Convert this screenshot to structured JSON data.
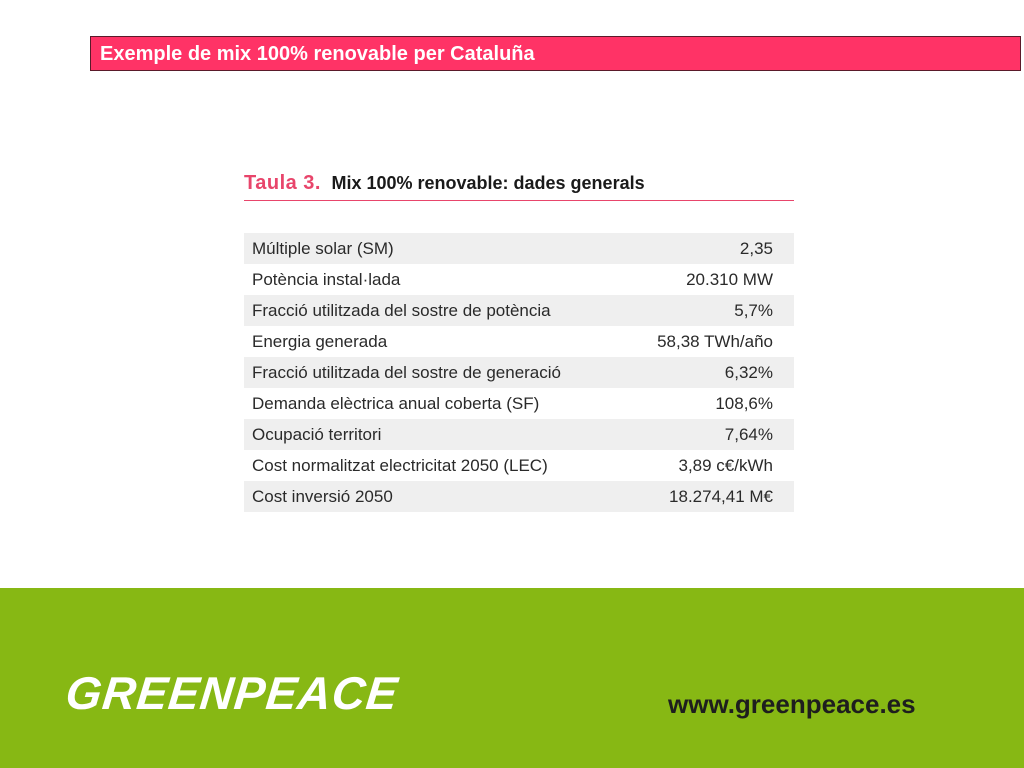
{
  "title": "Exemple de mix 100% renovable per Cataluña",
  "table": {
    "number": "Taula 3.",
    "caption": "Mix 100% renovable: dades generals",
    "rows": [
      {
        "label": "Múltiple solar (SM)",
        "value": "2,35"
      },
      {
        "label": "Potència instal·lada",
        "value": "20.310 MW"
      },
      {
        "label": "Fracció utilitzada del sostre de potència",
        "value": "5,7%"
      },
      {
        "label": "Energia generada",
        "value": "58,38 TWh/año"
      },
      {
        "label": "Fracció utilitzada del sostre de generació",
        "value": "6,32%"
      },
      {
        "label": "Demanda elèctrica anual coberta (SF)",
        "value": "108,6%"
      },
      {
        "label": "Ocupació territori",
        "value": "7,64%"
      },
      {
        "label": "Cost normalitzat electricitat 2050 (LEC)",
        "value": "3,89 c€/kWh"
      },
      {
        "label": "Cost inversió 2050",
        "value": "18.274,41 M€"
      }
    ]
  },
  "footer": {
    "logo": "GREENPEACE",
    "website": "www.greenpeace.es"
  },
  "colors": {
    "title_bar": "#ff3366",
    "table_accent": "#e8456b",
    "row_shade": "#efefef",
    "banner": "#87b814"
  }
}
